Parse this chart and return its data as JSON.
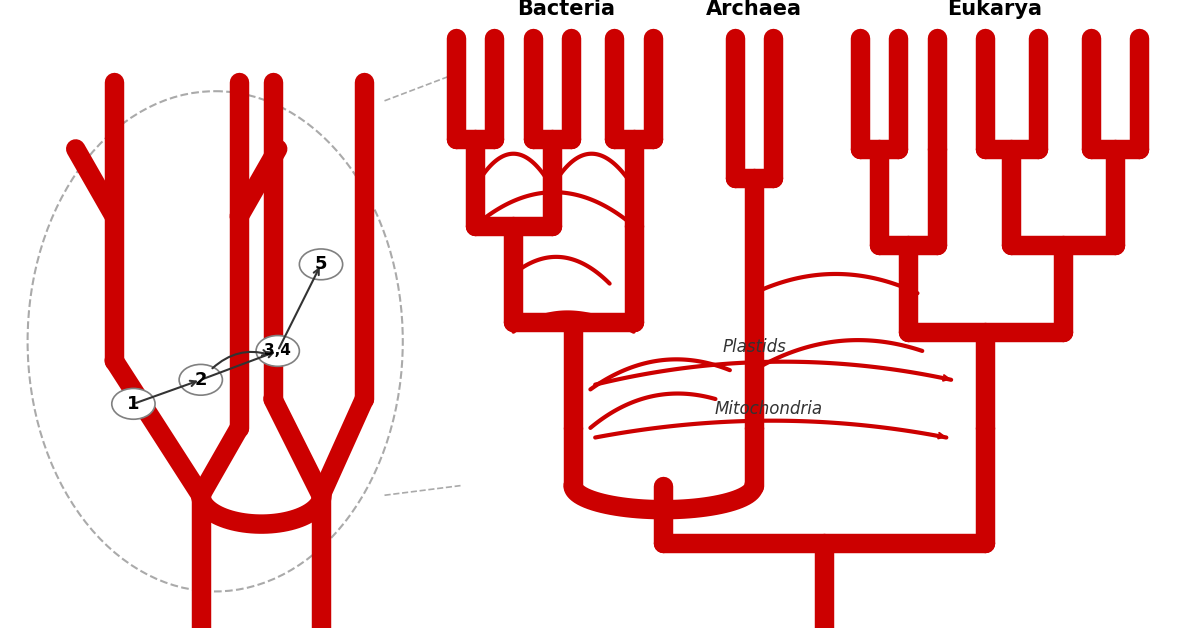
{
  "background_color": "#ffffff",
  "tree_color": "#cc0000",
  "line_color": "#cc0000",
  "arrow_color": "#333333",
  "dashed_color": "#aaaaaa",
  "text_color": "#000000",
  "labels": {
    "bacteria": "Bacteria",
    "archaea": "Archaea",
    "eukarya": "Eukarya",
    "plastids": "Plastids",
    "mitochondria": "Mitochondria"
  },
  "node_labels": [
    "1",
    "2",
    "3,4",
    "5"
  ],
  "title": "",
  "figsize": [
    12.0,
    6.28
  ],
  "dpi": 100
}
